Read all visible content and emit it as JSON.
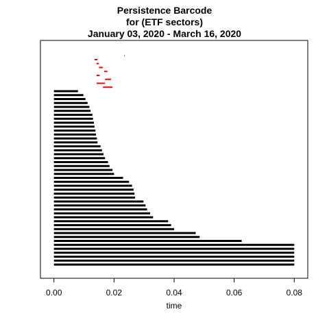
{
  "chart_data": {
    "type": "barcode",
    "title": [
      "Persistence Barcode",
      "for (ETF sectors)",
      "January 03, 2020 - March 16, 2020"
    ],
    "xlabel": "time",
    "ylabel": "",
    "xlim": [
      -0.0045,
      0.0845
    ],
    "xticks": [
      0.0,
      0.02,
      0.04,
      0.06,
      0.08
    ],
    "xtick_labels": [
      "0.00",
      "0.02",
      "0.04",
      "0.06",
      "0.08"
    ],
    "colors": {
      "dim0": "#000000",
      "dim1": "#ff0000"
    },
    "series": [
      {
        "dimension": 0,
        "bars": [
          [
            0,
            0.08
          ],
          [
            0,
            0.08
          ],
          [
            0,
            0.08
          ],
          [
            0,
            0.08
          ],
          [
            0,
            0.08
          ],
          [
            0,
            0.08
          ],
          [
            0,
            0.0625
          ],
          [
            0,
            0.0485
          ],
          [
            0,
            0.0472
          ],
          [
            0,
            0.04
          ],
          [
            0,
            0.039
          ],
          [
            0,
            0.038
          ],
          [
            0,
            0.033
          ],
          [
            0,
            0.032
          ],
          [
            0,
            0.031
          ],
          [
            0,
            0.0305
          ],
          [
            0,
            0.0298
          ],
          [
            0,
            0.027
          ],
          [
            0,
            0.0268
          ],
          [
            0,
            0.0265
          ],
          [
            0,
            0.026
          ],
          [
            0,
            0.025
          ],
          [
            0,
            0.023
          ],
          [
            0,
            0.02
          ],
          [
            0,
            0.0195
          ],
          [
            0,
            0.0185
          ],
          [
            0,
            0.018
          ],
          [
            0,
            0.017
          ],
          [
            0,
            0.0165
          ],
          [
            0,
            0.016
          ],
          [
            0,
            0.0155
          ],
          [
            0,
            0.0145
          ],
          [
            0,
            0.0143
          ],
          [
            0,
            0.014
          ],
          [
            0,
            0.0138
          ],
          [
            0,
            0.0135
          ],
          [
            0,
            0.0133
          ],
          [
            0,
            0.013
          ],
          [
            0,
            0.0128
          ],
          [
            0,
            0.0122
          ],
          [
            0,
            0.0118
          ],
          [
            0,
            0.0112
          ],
          [
            0,
            0.0105
          ],
          [
            0,
            0.0098
          ],
          [
            0,
            0.008
          ]
        ]
      },
      {
        "dimension": 1,
        "bars": [
          [
            0.0163,
            0.0195
          ],
          [
            0.0142,
            0.017
          ],
          [
            0.017,
            0.019
          ],
          [
            0.0142,
            0.0152
          ],
          [
            0.0167,
            0.0178
          ],
          [
            0.015,
            0.0163
          ],
          [
            0.0142,
            0.015
          ],
          [
            0.0135,
            0.0145
          ],
          [
            0.0234,
            0.0236
          ]
        ]
      }
    ]
  }
}
